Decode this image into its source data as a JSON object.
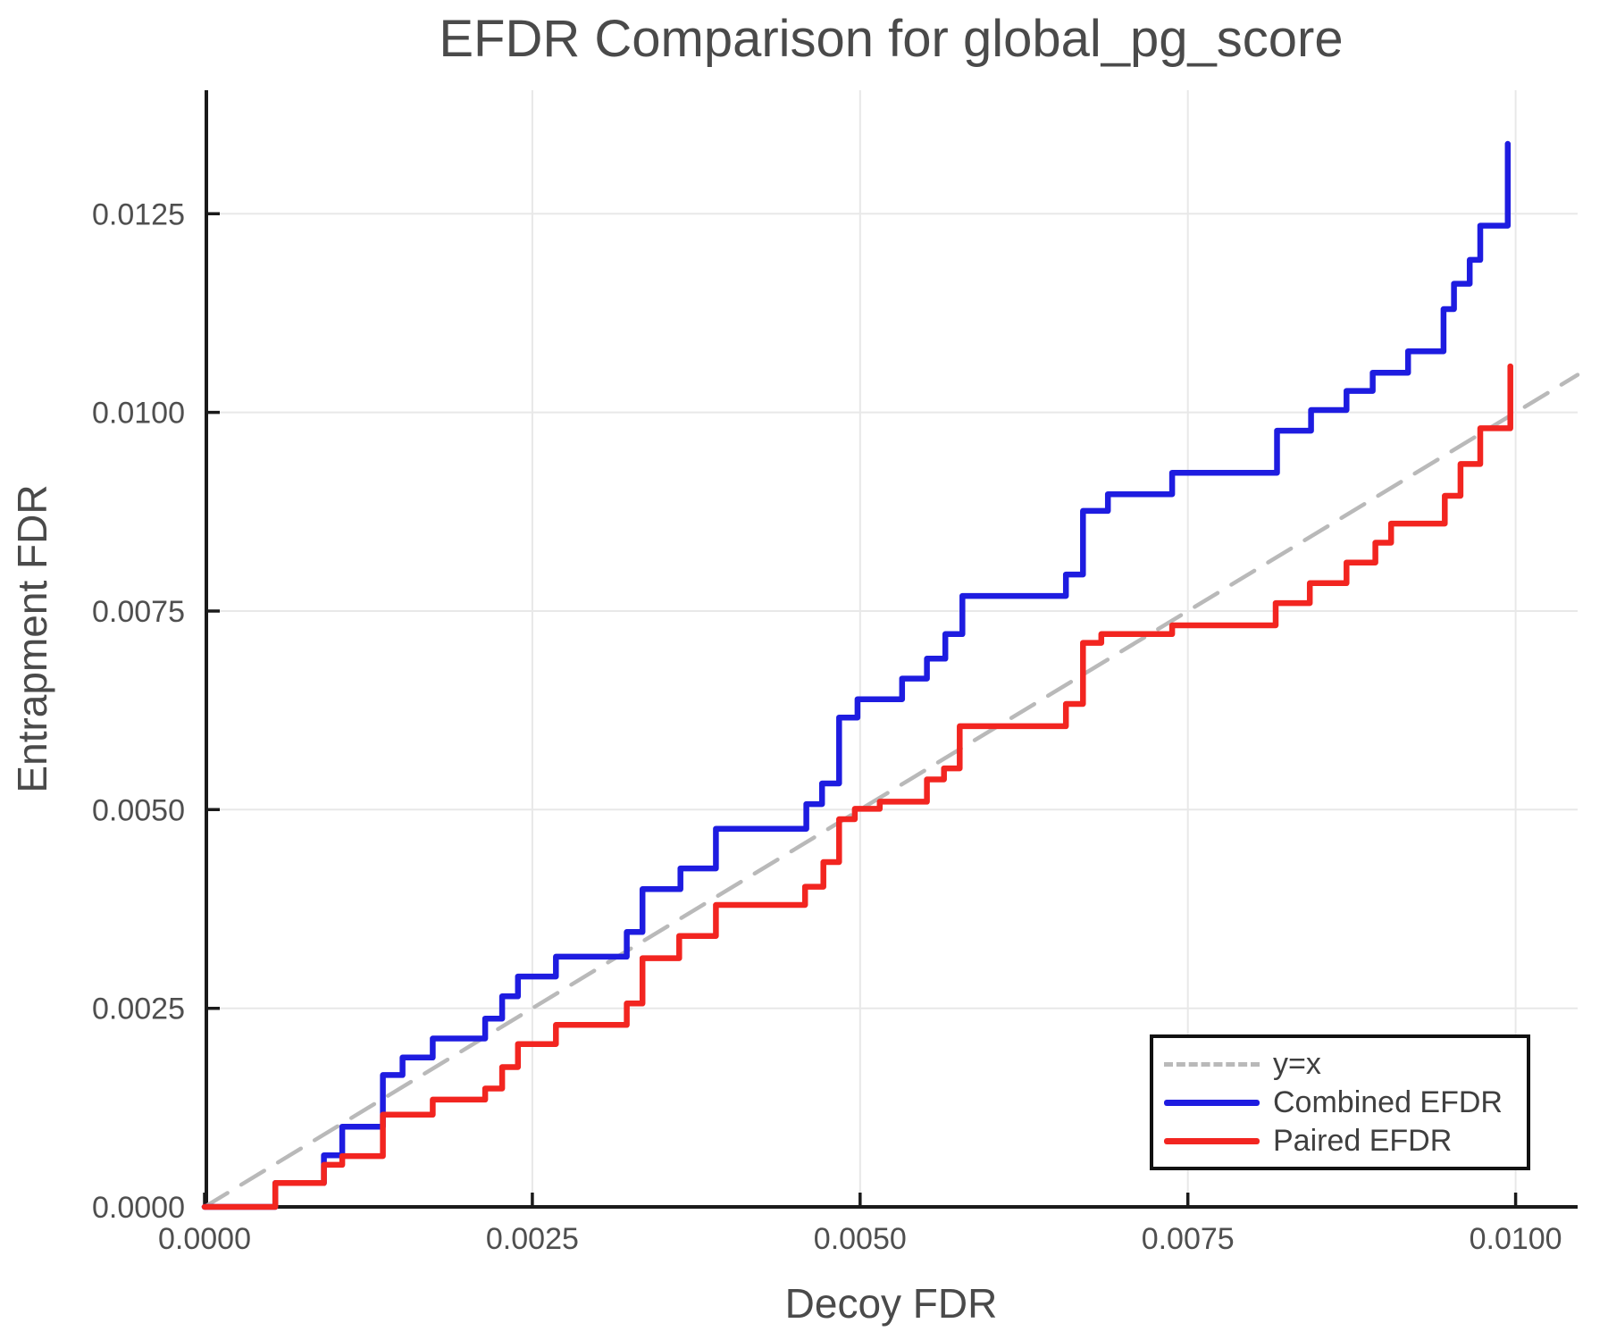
{
  "title": "EFDR Comparison for global_pg_score",
  "chart_data": {
    "type": "line",
    "title": "EFDR Comparison for global_pg_score",
    "xlabel": "Decoy FDR",
    "ylabel": "Entrapment FDR",
    "xlim": [
      0,
      0.010473
    ],
    "ylim": [
      0,
      0.014055
    ],
    "grid": true,
    "x_ticks": [
      {
        "v": 0.0,
        "label": "0.0000"
      },
      {
        "v": 0.0025,
        "label": "0.0025"
      },
      {
        "v": 0.005,
        "label": "0.0050"
      },
      {
        "v": 0.0075,
        "label": "0.0075"
      },
      {
        "v": 0.01,
        "label": "0.0100"
      }
    ],
    "y_ticks": [
      {
        "v": 0.0,
        "label": "0.0000"
      },
      {
        "v": 0.0025,
        "label": "0.0025"
      },
      {
        "v": 0.005,
        "label": "0.0050"
      },
      {
        "v": 0.0075,
        "label": "0.0075"
      },
      {
        "v": 0.01,
        "label": "0.0100"
      },
      {
        "v": 0.0125,
        "label": "0.0125"
      }
    ],
    "legend": {
      "position": "lower right",
      "entries": [
        {
          "label": "y=x",
          "color": "#b9b9b9",
          "style": "dashed"
        },
        {
          "label": "Combined EFDR",
          "color": "#1e1ce0",
          "style": "solid"
        },
        {
          "label": "Paired EFDR",
          "color": "#f22520",
          "style": "solid"
        }
      ]
    },
    "series": [
      {
        "name": "y=x",
        "mode": "line",
        "color": "#b9b9b9",
        "width": 4.5,
        "dash": "30 18",
        "points": [
          [
            0,
            0
          ],
          [
            0.010473,
            0.010473
          ]
        ]
      },
      {
        "name": "Combined EFDR",
        "mode": "step",
        "color": "#1e1ce0",
        "width": 6.5,
        "dash": null,
        "points": [
          [
            0.0,
            0.0
          ],
          [
            0.00054,
            0.0003
          ],
          [
            0.00091,
            0.00065
          ],
          [
            0.00105,
            0.00101
          ],
          [
            0.00136,
            0.00166
          ],
          [
            0.00151,
            0.00188
          ],
          [
            0.00174,
            0.00212
          ],
          [
            0.00214,
            0.00237
          ],
          [
            0.00227,
            0.00265
          ],
          [
            0.00239,
            0.0029
          ],
          [
            0.00268,
            0.00315
          ],
          [
            0.00322,
            0.00346
          ],
          [
            0.00334,
            0.004
          ],
          [
            0.00363,
            0.00426
          ],
          [
            0.0039,
            0.00476
          ],
          [
            0.00459,
            0.00507
          ],
          [
            0.00471,
            0.00533
          ],
          [
            0.00484,
            0.00616
          ],
          [
            0.00498,
            0.00639
          ],
          [
            0.00532,
            0.00665
          ],
          [
            0.00551,
            0.0069
          ],
          [
            0.00565,
            0.00721
          ],
          [
            0.00578,
            0.00769
          ],
          [
            0.00657,
            0.00796
          ],
          [
            0.0067,
            0.00876
          ],
          [
            0.00689,
            0.00897
          ],
          [
            0.00738,
            0.00924
          ],
          [
            0.00818,
            0.00977
          ],
          [
            0.00844,
            0.01003
          ],
          [
            0.00871,
            0.01027
          ],
          [
            0.00891,
            0.0105
          ],
          [
            0.00918,
            0.01077
          ],
          [
            0.00945,
            0.0113
          ],
          [
            0.00953,
            0.01162
          ],
          [
            0.00965,
            0.01192
          ],
          [
            0.00973,
            0.01235
          ],
          [
            0.00994,
            0.01338
          ]
        ]
      },
      {
        "name": "Paired EFDR",
        "mode": "step",
        "color": "#f22520",
        "width": 6.5,
        "dash": null,
        "points": [
          [
            0.0,
            0.0
          ],
          [
            0.00054,
            0.0003
          ],
          [
            0.00091,
            0.00053
          ],
          [
            0.00105,
            0.00064
          ],
          [
            0.00136,
            0.00116
          ],
          [
            0.00174,
            0.00135
          ],
          [
            0.00214,
            0.00149
          ],
          [
            0.00227,
            0.00176
          ],
          [
            0.00239,
            0.00205
          ],
          [
            0.00268,
            0.00229
          ],
          [
            0.00322,
            0.00256
          ],
          [
            0.00334,
            0.00313
          ],
          [
            0.00362,
            0.00341
          ],
          [
            0.0039,
            0.0038
          ],
          [
            0.00458,
            0.00403
          ],
          [
            0.00472,
            0.00434
          ],
          [
            0.00484,
            0.00488
          ],
          [
            0.00496,
            0.00501
          ],
          [
            0.00515,
            0.0051
          ],
          [
            0.00551,
            0.00538
          ],
          [
            0.00564,
            0.00552
          ],
          [
            0.00576,
            0.00605
          ],
          [
            0.00657,
            0.00633
          ],
          [
            0.0067,
            0.0071
          ],
          [
            0.00684,
            0.00721
          ],
          [
            0.00738,
            0.00732
          ],
          [
            0.00817,
            0.0076
          ],
          [
            0.00843,
            0.00785
          ],
          [
            0.00871,
            0.00811
          ],
          [
            0.00893,
            0.00836
          ],
          [
            0.00905,
            0.0086
          ],
          [
            0.00946,
            0.00895
          ],
          [
            0.00958,
            0.00935
          ],
          [
            0.00973,
            0.0098
          ],
          [
            0.00996,
            0.01058
          ]
        ]
      }
    ],
    "style": {
      "grid_color": "#e8e8e8",
      "spine_color": "#1a1a1a",
      "tick_color": "#1a1a1a",
      "tick_label_color": "#4f4f4f",
      "background": "#ffffff"
    }
  }
}
